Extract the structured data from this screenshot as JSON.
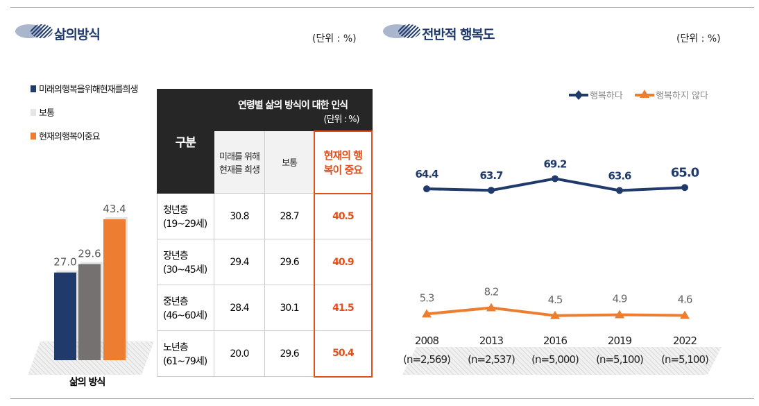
{
  "left": {
    "title": "삶의방식",
    "unit": "(단위 : %)",
    "legend": [
      {
        "label": "미래의행복을위해현재를희생",
        "color": "#1f3a6b"
      },
      {
        "label": "보통",
        "color": "#e6e6e6"
      },
      {
        "label": "현재의행복이중요",
        "color": "#ed7d31"
      }
    ]
  },
  "table": {
    "title": "연령별 삶의 방식이 대한 인식",
    "unit": "(단위 : %)",
    "col_header": "구분",
    "columns": [
      "미래를 위해 현재를 희생",
      "보통",
      "현재의 행복이 중요"
    ],
    "rows": [
      {
        "name": "청년층",
        "range": "(19~29세)",
        "values": [
          "30.8",
          "28.7",
          "40.5"
        ]
      },
      {
        "name": "장년층",
        "range": "(30~45세)",
        "values": [
          "29.4",
          "29.6",
          "40.9"
        ]
      },
      {
        "name": "중년층",
        "range": "(46~60세)",
        "values": [
          "28.4",
          "30.1",
          "41.5"
        ]
      },
      {
        "name": "노년층",
        "range": "(61~79세)",
        "values": [
          "20.0",
          "29.6",
          "50.4"
        ]
      }
    ]
  },
  "right": {
    "title": "전반적 행복도",
    "unit": "(단위 : %)"
  },
  "chart_data": [
    {
      "type": "bar",
      "categories": [
        "삶의 방식"
      ],
      "series": [
        {
          "name": "미래의행복을위해현재를희생",
          "values": [
            27.0
          ],
          "labels": [
            "27.0"
          ],
          "color": "#1f3a6b"
        },
        {
          "name": "보통",
          "values": [
            29.6
          ],
          "labels": [
            "29.6"
          ],
          "color": "#767171"
        },
        {
          "name": "현재의행복이중요",
          "values": [
            43.4
          ],
          "labels": [
            "43.4"
          ],
          "color": "#ed7d31"
        }
      ],
      "ylim": [
        0,
        50
      ],
      "grid": false,
      "legend": "top-left"
    },
    {
      "type": "line",
      "categories": [
        "2008",
        "2013",
        "2016",
        "2019",
        "2022"
      ],
      "category_sub": [
        "(n=2,569)",
        "(n=2,537)",
        "(n=5,000)",
        "(n=5,100)",
        "(n=5,100)"
      ],
      "series": [
        {
          "name": "행복하다",
          "values": [
            64.4,
            63.7,
            69.2,
            63.6,
            65.0
          ],
          "labels": [
            "64.4",
            "63.7",
            "69.2",
            "63.6",
            "65.0"
          ],
          "color": "#1f3a6b",
          "marker": "diamond"
        },
        {
          "name": "행복하지 않다",
          "values": [
            5.3,
            8.2,
            4.5,
            4.9,
            4.6
          ],
          "labels": [
            "5.3",
            "8.2",
            "4.5",
            "4.9",
            "4.6"
          ],
          "color": "#ed7d31",
          "marker": "triangle"
        }
      ],
      "grid": false,
      "legend": "top-right"
    }
  ]
}
